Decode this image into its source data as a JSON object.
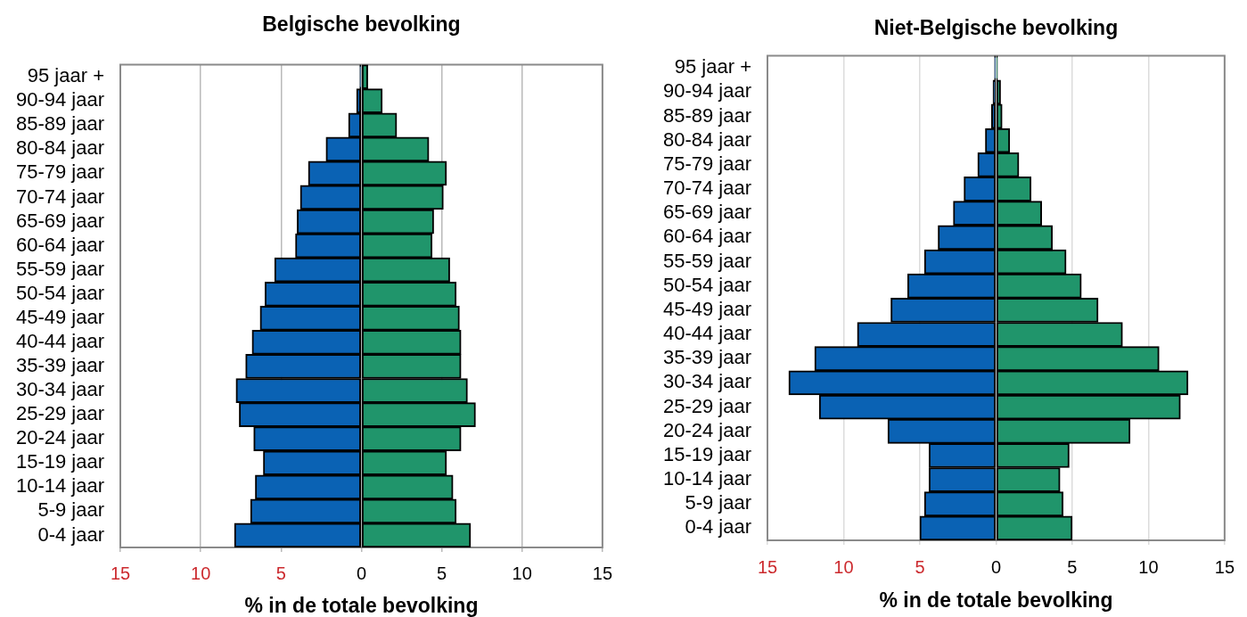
{
  "chart_data": [
    {
      "type": "bar",
      "orientation": "horizontal",
      "stacked": true,
      "title": "Belgische bevolking",
      "xlabel": "% in de totale bevolking",
      "categories": [
        "95 jaar +",
        "90-94 jaar",
        "85-89 jaar",
        "80-84 jaar",
        "75-79 jaar",
        "70-74 jaar",
        "65-69 jaar",
        "60-64 jaar",
        "55-59 jaar",
        "50-54 jaar",
        "45-49 jaar",
        "40-44 jaar",
        "35-39 jaar",
        "30-34 jaar",
        "25-29 jaar",
        "20-24 jaar",
        "15-19 jaar",
        "10-14 jaar",
        "5-9 jaar",
        "0-4 jaar"
      ],
      "series": [
        {
          "color": "#0a62b4",
          "values": [
            -0.1,
            -0.3,
            -0.8,
            -2.2,
            -3.3,
            -3.8,
            -4.0,
            -4.1,
            -5.4,
            -6.0,
            -6.3,
            -6.8,
            -7.2,
            -7.8,
            -7.6,
            -6.7,
            -6.1,
            -6.6,
            -6.9,
            -7.9
          ]
        },
        {
          "color": "#20956b",
          "values": [
            0.4,
            1.3,
            2.2,
            4.2,
            5.3,
            5.1,
            4.5,
            4.4,
            5.5,
            5.9,
            6.1,
            6.2,
            6.2,
            6.6,
            7.1,
            6.2,
            5.3,
            5.7,
            5.9,
            6.8
          ]
        }
      ],
      "xlim": [
        -15,
        15
      ],
      "xticks": [
        {
          "value": -15,
          "label": "15"
        },
        {
          "value": -10,
          "label": "10"
        },
        {
          "value": -5,
          "label": "5"
        },
        0,
        5,
        10,
        15
      ],
      "grid": "x"
    },
    {
      "type": "bar",
      "orientation": "horizontal",
      "stacked": true,
      "title": "Niet-Belgische bevolking",
      "xlabel": "% in de totale bevolking",
      "categories": [
        "95 jaar +",
        "90-94 jaar",
        "85-89 jaar",
        "80-84 jaar",
        "75-79 jaar",
        "70-74 jaar",
        "65-69 jaar",
        "60-64 jaar",
        "55-59 jaar",
        "50-54 jaar",
        "45-49 jaar",
        "40-44 jaar",
        "35-39 jaar",
        "30-34 jaar",
        "25-29 jaar",
        "20-24 jaar",
        "15-19 jaar",
        "10-14 jaar",
        "5-9 jaar",
        "0-4 jaar"
      ],
      "series": [
        {
          "color": "#0a62b4",
          "values": [
            -0.1,
            -0.2,
            -0.3,
            -0.7,
            -1.2,
            -2.1,
            -2.8,
            -3.8,
            -4.7,
            -5.8,
            -6.9,
            -9.1,
            -11.9,
            -13.6,
            -11.6,
            -7.1,
            -4.4,
            -4.4,
            -4.7,
            -5.0
          ]
        },
        {
          "color": "#20956b",
          "values": [
            0.1,
            0.3,
            0.4,
            0.9,
            1.5,
            2.3,
            3.0,
            3.7,
            4.6,
            5.6,
            6.7,
            8.3,
            10.7,
            12.6,
            12.1,
            8.8,
            4.8,
            4.2,
            4.4,
            5.0
          ]
        }
      ],
      "xlim": [
        -15,
        15
      ],
      "xticks": [
        {
          "value": -15,
          "label": "15"
        },
        {
          "value": -10,
          "label": "10"
        },
        {
          "value": -5,
          "label": "5"
        },
        0,
        5,
        10,
        15
      ],
      "grid": "x"
    }
  ]
}
